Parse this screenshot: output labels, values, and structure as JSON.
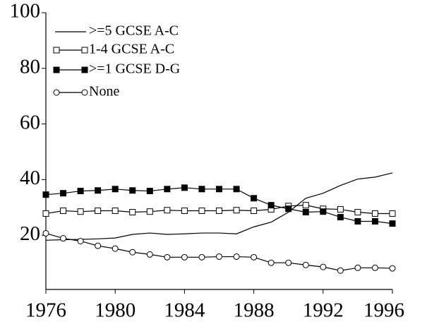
{
  "chart_data": {
    "type": "line",
    "x": [
      1976,
      1977,
      1978,
      1979,
      1980,
      1981,
      1982,
      1983,
      1984,
      1985,
      1986,
      1987,
      1988,
      1989,
      1990,
      1991,
      1992,
      1993,
      1994,
      1995,
      1996
    ],
    "xlim": [
      1976,
      1996
    ],
    "xticks": [
      1976,
      1980,
      1984,
      1988,
      1992,
      1996
    ],
    "ylim": [
      0,
      100
    ],
    "yticks": [
      20,
      40,
      60,
      80,
      100
    ],
    "legend": "upper left",
    "series": [
      {
        "name": ">=5 GCSE A-C",
        "color": "#000000",
        "marker": "none",
        "values": [
          18.2,
          18.4,
          18.5,
          18.7,
          19.0,
          20.3,
          20.8,
          20.3,
          20.5,
          20.8,
          20.8,
          20.5,
          23.0,
          24.7,
          28.3,
          33.3,
          35.1,
          37.9,
          40.2,
          40.9,
          42.4
        ]
      },
      {
        "name": "1-4 GCSE A-C",
        "color": "#000000",
        "marker": "square-open",
        "values": [
          27.8,
          28.8,
          28.5,
          28.8,
          28.8,
          28.3,
          28.5,
          29.0,
          28.8,
          28.8,
          28.8,
          29.0,
          28.8,
          29.3,
          30.5,
          30.8,
          29.5,
          29.3,
          28.3,
          27.8,
          27.8
        ]
      },
      {
        "name": ">=1 GCSE D-G",
        "color": "#000000",
        "marker": "square-filled",
        "values": [
          34.6,
          35.1,
          35.9,
          36.1,
          36.6,
          36.1,
          35.9,
          36.6,
          37.1,
          36.6,
          36.6,
          36.6,
          33.3,
          30.8,
          29.5,
          28.3,
          28.5,
          26.5,
          25.0,
          25.0,
          24.2
        ]
      },
      {
        "name": "None",
        "color": "#000000",
        "marker": "circle-open",
        "values": [
          20.7,
          18.9,
          17.9,
          16.2,
          15.2,
          13.9,
          13.1,
          12.1,
          12.1,
          12.1,
          12.3,
          12.3,
          12.1,
          10.1,
          10.1,
          9.3,
          8.6,
          7.3,
          8.3,
          8.3,
          8.1
        ]
      }
    ]
  }
}
